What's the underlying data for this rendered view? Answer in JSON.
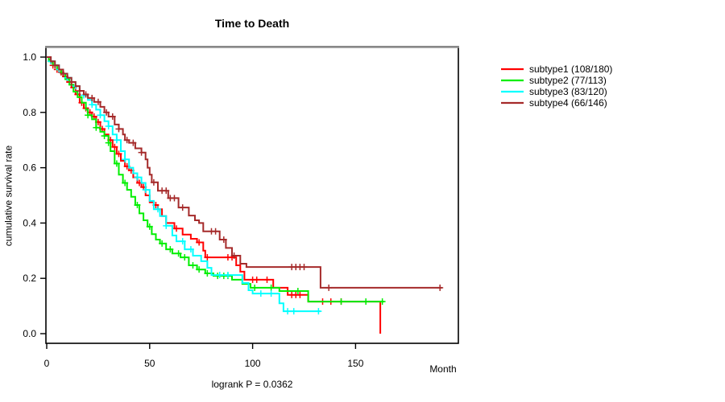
{
  "chart_data": {
    "type": "line",
    "subtype_chart": "kaplan-meier-step",
    "title": "Time to Death",
    "ylabel": "cumulative survival rate",
    "xlabel": "Month",
    "footnote": "logrank P = 0.0362",
    "xlim": [
      0,
      200
    ],
    "ylim": [
      0.0,
      1.0
    ],
    "xticks": [
      0,
      50,
      100,
      150
    ],
    "yticks": [
      "0.0",
      "0.2",
      "0.4",
      "0.6",
      "0.8",
      "1.0"
    ],
    "grid": "off",
    "legend_position": "right-outside",
    "axis_color": "#000000",
    "box_top_color": "#8f8f8f",
    "series": [
      {
        "name": "subtype1",
        "label": "subtype1 (108/180)",
        "color": "#FF0000",
        "points": [
          [
            0,
            1
          ],
          [
            1,
            0.99
          ],
          [
            2,
            0.98
          ],
          [
            3,
            0.97
          ],
          [
            5,
            0.955
          ],
          [
            6,
            0.945
          ],
          [
            8,
            0.93
          ],
          [
            10,
            0.91
          ],
          [
            12,
            0.89
          ],
          [
            14,
            0.865
          ],
          [
            16,
            0.835
          ],
          [
            18,
            0.815
          ],
          [
            20,
            0.8
          ],
          [
            22,
            0.785
          ],
          [
            24,
            0.765
          ],
          [
            26,
            0.74
          ],
          [
            28,
            0.72
          ],
          [
            30,
            0.7
          ],
          [
            32,
            0.675
          ],
          [
            34,
            0.65
          ],
          [
            36,
            0.625
          ],
          [
            38,
            0.605
          ],
          [
            40,
            0.59
          ],
          [
            42,
            0.565
          ],
          [
            44,
            0.545
          ],
          [
            46,
            0.53
          ],
          [
            48,
            0.5
          ],
          [
            50,
            0.475
          ],
          [
            52,
            0.465
          ],
          [
            54,
            0.45
          ],
          [
            56,
            0.425
          ],
          [
            58,
            0.4
          ],
          [
            62,
            0.38
          ],
          [
            66,
            0.358
          ],
          [
            70,
            0.343
          ],
          [
            73,
            0.33
          ],
          [
            76,
            0.3
          ],
          [
            77,
            0.276
          ],
          [
            92,
            0.247
          ],
          [
            94,
            0.224
          ],
          [
            96,
            0.195
          ],
          [
            110,
            0.166
          ],
          [
            117,
            0.14
          ],
          [
            127,
            0.116
          ],
          [
            162,
            0.0
          ]
        ],
        "censors": [
          3,
          5,
          7,
          9,
          11,
          13,
          15,
          17,
          19,
          21,
          23,
          25,
          27,
          31,
          33,
          35,
          39,
          41,
          45,
          47,
          53,
          63,
          74,
          78,
          88,
          90,
          100,
          102,
          107,
          119,
          121,
          123,
          134,
          138,
          143
        ]
      },
      {
        "name": "subtype2",
        "label": "subtype2 (77/113)",
        "color": "#00EE00",
        "points": [
          [
            0,
            1
          ],
          [
            1,
            0.985
          ],
          [
            3,
            0.97
          ],
          [
            5,
            0.955
          ],
          [
            7,
            0.94
          ],
          [
            9,
            0.92
          ],
          [
            11,
            0.9
          ],
          [
            13,
            0.875
          ],
          [
            15,
            0.855
          ],
          [
            17,
            0.835
          ],
          [
            19,
            0.81
          ],
          [
            20,
            0.79
          ],
          [
            22,
            0.775
          ],
          [
            24,
            0.745
          ],
          [
            26,
            0.73
          ],
          [
            28,
            0.715
          ],
          [
            30,
            0.69
          ],
          [
            31,
            0.66
          ],
          [
            33,
            0.615
          ],
          [
            35,
            0.575
          ],
          [
            37,
            0.545
          ],
          [
            39,
            0.52
          ],
          [
            41,
            0.495
          ],
          [
            43,
            0.465
          ],
          [
            45,
            0.435
          ],
          [
            47,
            0.41
          ],
          [
            49,
            0.387
          ],
          [
            51,
            0.36
          ],
          [
            53,
            0.34
          ],
          [
            55,
            0.326
          ],
          [
            58,
            0.305
          ],
          [
            61,
            0.29
          ],
          [
            65,
            0.276
          ],
          [
            69,
            0.247
          ],
          [
            73,
            0.232
          ],
          [
            77,
            0.218
          ],
          [
            81,
            0.209
          ],
          [
            90,
            0.195
          ],
          [
            95,
            0.18
          ],
          [
            99,
            0.166
          ],
          [
            113,
            0.154
          ],
          [
            127,
            0.116
          ],
          [
            164,
            0.116
          ]
        ],
        "censors": [
          20,
          24,
          28,
          30,
          34,
          38,
          44,
          50,
          56,
          60,
          64,
          67,
          71,
          74,
          78,
          83,
          86,
          88,
          101,
          109,
          122,
          143,
          155,
          163
        ]
      },
      {
        "name": "subtype3",
        "label": "subtype3 (83/120)",
        "color": "#00FFFF",
        "points": [
          [
            0,
            1
          ],
          [
            2,
            0.985
          ],
          [
            4,
            0.97
          ],
          [
            6,
            0.955
          ],
          [
            8,
            0.94
          ],
          [
            10,
            0.925
          ],
          [
            12,
            0.91
          ],
          [
            14,
            0.895
          ],
          [
            16,
            0.878
          ],
          [
            18,
            0.862
          ],
          [
            20,
            0.845
          ],
          [
            22,
            0.828
          ],
          [
            24,
            0.81
          ],
          [
            26,
            0.79
          ],
          [
            28,
            0.768
          ],
          [
            30,
            0.75
          ],
          [
            32,
            0.72
          ],
          [
            34,
            0.7
          ],
          [
            36,
            0.66
          ],
          [
            38,
            0.63
          ],
          [
            40,
            0.6
          ],
          [
            42,
            0.58
          ],
          [
            44,
            0.565
          ],
          [
            46,
            0.545
          ],
          [
            48,
            0.52
          ],
          [
            50,
            0.48
          ],
          [
            52,
            0.45
          ],
          [
            55,
            0.425
          ],
          [
            58,
            0.39
          ],
          [
            61,
            0.355
          ],
          [
            63,
            0.334
          ],
          [
            67,
            0.305
          ],
          [
            71,
            0.282
          ],
          [
            75,
            0.262
          ],
          [
            78,
            0.238
          ],
          [
            80,
            0.212
          ],
          [
            95,
            0.183
          ],
          [
            98,
            0.157
          ],
          [
            100,
            0.145
          ],
          [
            113,
            0.11
          ],
          [
            115,
            0.081
          ],
          [
            133,
            0.081
          ]
        ],
        "censors": [
          2,
          6,
          10,
          14,
          18,
          22,
          26,
          30,
          34,
          38,
          44,
          48,
          54,
          58,
          66,
          70,
          84,
          88,
          104,
          109,
          117,
          120,
          132
        ]
      },
      {
        "name": "subtype4",
        "label": "subtype4 (66/146)",
        "color": "#A52A2A",
        "points": [
          [
            0,
            1
          ],
          [
            2,
            0.985
          ],
          [
            4,
            0.97
          ],
          [
            6,
            0.955
          ],
          [
            8,
            0.94
          ],
          [
            10,
            0.925
          ],
          [
            12,
            0.91
          ],
          [
            14,
            0.895
          ],
          [
            16,
            0.878
          ],
          [
            18,
            0.865
          ],
          [
            20,
            0.852
          ],
          [
            23,
            0.838
          ],
          [
            26,
            0.82
          ],
          [
            28,
            0.8
          ],
          [
            30,
            0.785
          ],
          [
            33,
            0.756
          ],
          [
            35,
            0.74
          ],
          [
            37,
            0.72
          ],
          [
            38,
            0.7
          ],
          [
            40,
            0.69
          ],
          [
            43,
            0.67
          ],
          [
            46,
            0.655
          ],
          [
            48,
            0.63
          ],
          [
            49,
            0.6
          ],
          [
            50,
            0.575
          ],
          [
            51,
            0.547
          ],
          [
            54,
            0.517
          ],
          [
            59,
            0.49
          ],
          [
            64,
            0.456
          ],
          [
            69,
            0.427
          ],
          [
            72,
            0.41
          ],
          [
            74,
            0.4
          ],
          [
            76,
            0.37
          ],
          [
            84,
            0.34
          ],
          [
            87,
            0.31
          ],
          [
            90,
            0.282
          ],
          [
            94,
            0.253
          ],
          [
            97,
            0.241
          ],
          [
            133,
            0.166
          ],
          [
            192,
            0.166
          ]
        ],
        "censors": [
          4,
          8,
          12,
          16,
          19,
          22,
          25,
          29,
          32,
          35,
          39,
          42,
          46,
          52,
          56,
          58,
          60,
          62,
          66,
          80,
          82,
          86,
          91,
          119,
          121,
          123,
          125,
          137,
          191
        ]
      }
    ]
  }
}
